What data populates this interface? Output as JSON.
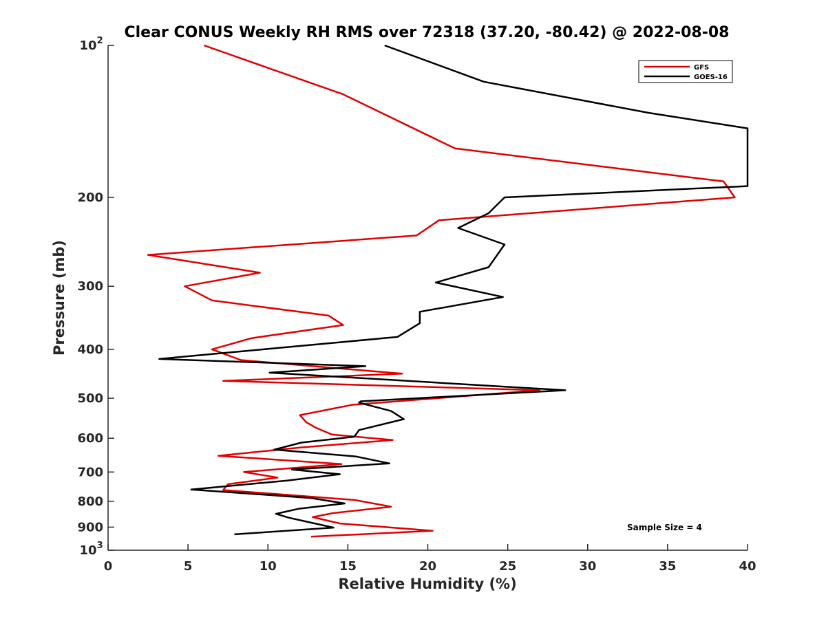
{
  "chart_data": {
    "type": "line",
    "title": "Clear CONUS Weekly RH RMS over 72318 (37.20, -80.42) @ 2022-08-08",
    "xlabel": "Relative Humidity (%)",
    "ylabel": "Pressure (mb)",
    "xlim": [
      0,
      40
    ],
    "ylim": [
      100,
      1000
    ],
    "y_scale": "log",
    "y_reversed": true,
    "grid": false,
    "x_ticks": [
      0,
      5,
      10,
      15,
      20,
      25,
      30,
      35,
      40
    ],
    "y_ticks": [
      {
        "value": 100,
        "label": "10",
        "sup": "2"
      },
      {
        "value": 200,
        "label": "200",
        "sup": ""
      },
      {
        "value": 300,
        "label": "300",
        "sup": ""
      },
      {
        "value": 400,
        "label": "400",
        "sup": ""
      },
      {
        "value": 500,
        "label": "500",
        "sup": ""
      },
      {
        "value": 600,
        "label": "600",
        "sup": ""
      },
      {
        "value": 700,
        "label": "700",
        "sup": ""
      },
      {
        "value": 800,
        "label": "800",
        "sup": ""
      },
      {
        "value": 900,
        "label": "900",
        "sup": ""
      },
      {
        "value": 1000,
        "label": "10",
        "sup": "3"
      }
    ],
    "legend_position": "top-right",
    "series": [
      {
        "name": "GFS",
        "color": "#e00000",
        "x": [
          6.0,
          14.7,
          21.7,
          38.5,
          39.2,
          20.7,
          19.3,
          2.5,
          9.5,
          4.8,
          6.5,
          13.8,
          14.7,
          9.0,
          6.5,
          8.3,
          18.4,
          7.2,
          27.0,
          15.3,
          12.0,
          12.4,
          13.0,
          14.0,
          17.8,
          12.0,
          6.9,
          14.6,
          8.5,
          10.6,
          7.5,
          7.2,
          15.4,
          17.7,
          14.0,
          12.8,
          14.5,
          20.3,
          12.7
        ],
        "y": [
          100,
          125,
          160,
          186,
          200,
          222,
          238,
          260,
          282,
          300,
          320,
          343,
          358,
          380,
          400,
          420,
          447,
          462,
          482,
          515,
          540,
          558,
          572,
          590,
          605,
          626,
          650,
          675,
          700,
          718,
          740,
          760,
          795,
          820,
          845,
          860,
          885,
          915,
          940
        ]
      },
      {
        "name": "GOES-16",
        "color": "#000000",
        "x": [
          17.3,
          23.5,
          33.8,
          40.0,
          40.0,
          24.8,
          23.8,
          21.9,
          24.8,
          23.8,
          20.5,
          24.7,
          19.5,
          19.5,
          18.1,
          3.2,
          16.1,
          10.1,
          28.6,
          15.8,
          15.7,
          17.7,
          18.5,
          15.7,
          15.4,
          12.1,
          10.4,
          15.5,
          17.6,
          11.5,
          14.5,
          11.2,
          5.2,
          12.7,
          14.8,
          11.9,
          10.5,
          11.3,
          12.5,
          14.1,
          7.9
        ],
        "y": [
          100,
          118,
          136,
          146,
          190,
          200,
          215,
          230,
          248,
          275,
          295,
          315,
          337,
          355,
          378,
          418,
          432,
          445,
          482,
          507,
          510,
          530,
          550,
          578,
          596,
          612,
          632,
          652,
          673,
          692,
          707,
          728,
          758,
          788,
          808,
          828,
          847,
          862,
          879,
          902,
          930
        ]
      }
    ],
    "annotations": [
      "Sample Size = 4"
    ]
  }
}
